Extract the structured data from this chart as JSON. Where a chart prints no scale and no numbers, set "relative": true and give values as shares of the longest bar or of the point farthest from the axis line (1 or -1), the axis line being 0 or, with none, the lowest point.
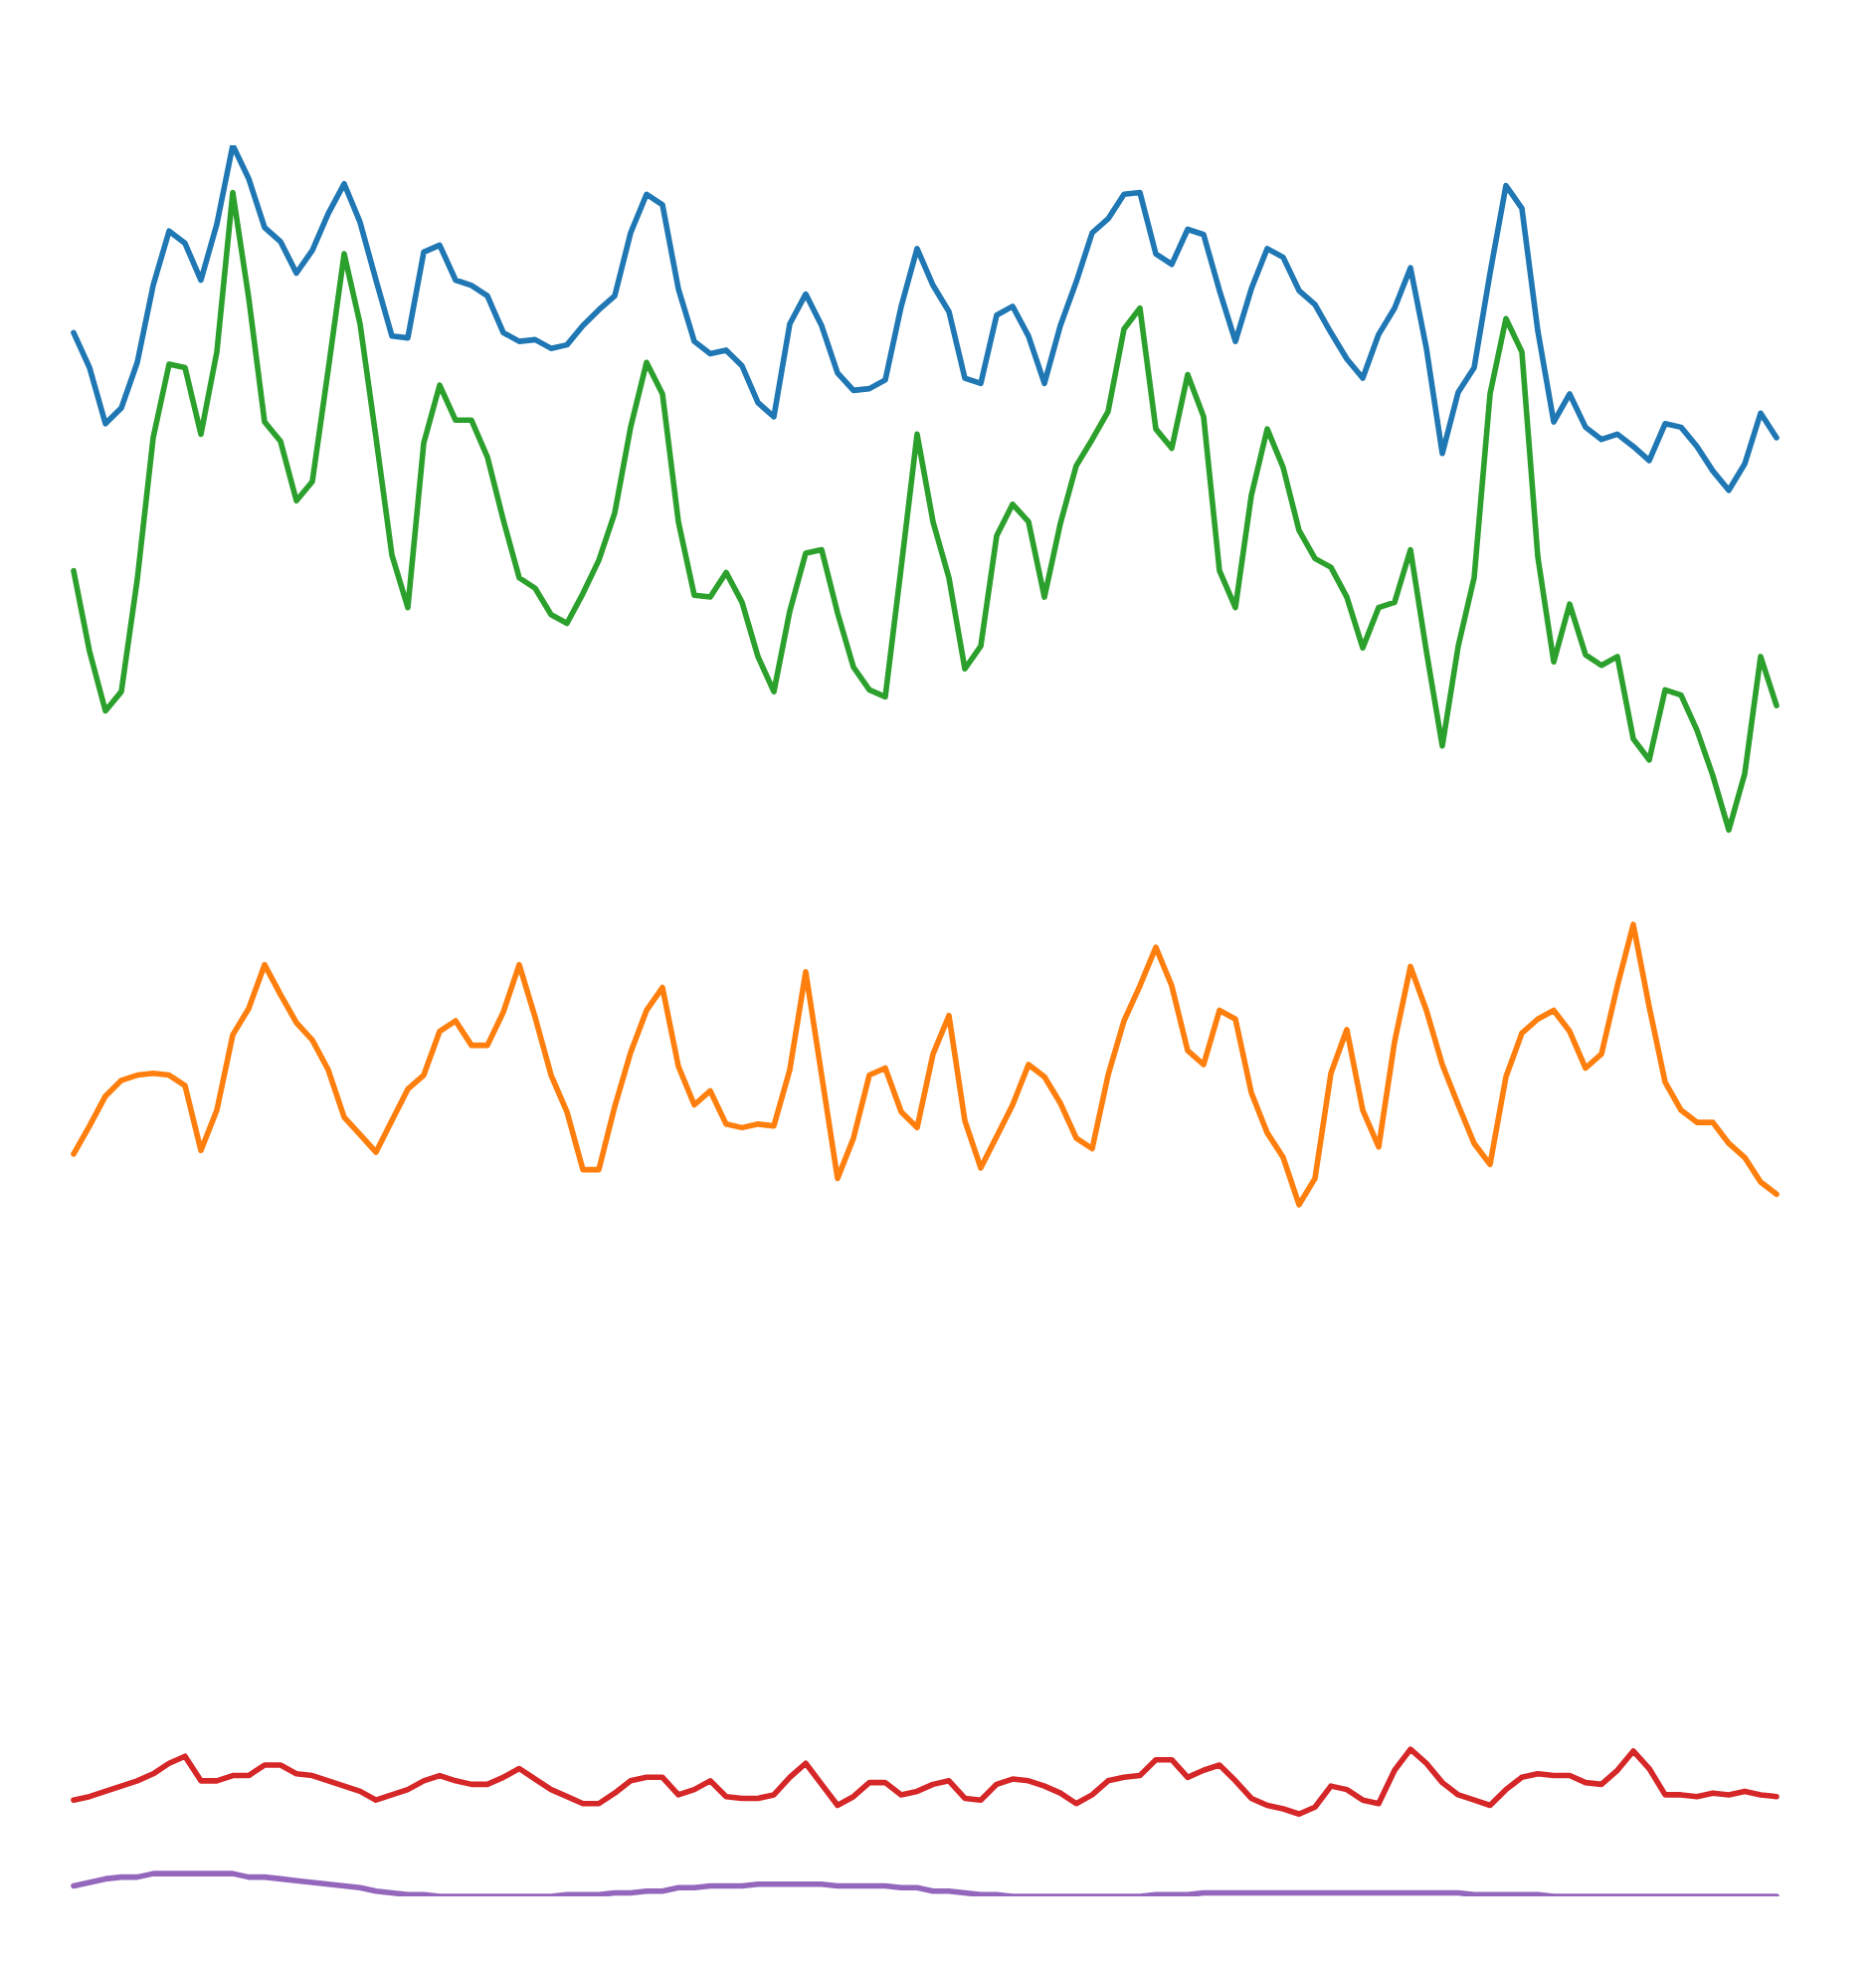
{
  "chart_data": {
    "type": "line",
    "relative": true,
    "categories": [
      null,
      null,
      null,
      null,
      null,
      null,
      null,
      null,
      null,
      null,
      null,
      null,
      null,
      null,
      null,
      null,
      null,
      null,
      null,
      null,
      null,
      null,
      null,
      null,
      null,
      null,
      null,
      null,
      null,
      null,
      null,
      null,
      null,
      null,
      null,
      null,
      null,
      null,
      null,
      null,
      null,
      null,
      null,
      null,
      null,
      null,
      null,
      null,
      null,
      null,
      null,
      null,
      null,
      null,
      null,
      null,
      null,
      null,
      null,
      null,
      null,
      null,
      null,
      null,
      null,
      null,
      null,
      null,
      null,
      null,
      null,
      null,
      null,
      null,
      null,
      null,
      null,
      null,
      null,
      null,
      null,
      null,
      null,
      null,
      null,
      null,
      null,
      null,
      null,
      null,
      null,
      null,
      null,
      null,
      null,
      null,
      null,
      null,
      null,
      null,
      null,
      null,
      null,
      null,
      null,
      null,
      null,
      null
    ],
    "series": [
      {
        "color": "#1f77b4",
        "values": [
          0.893,
          0.873,
          0.841,
          0.85,
          0.876,
          0.92,
          0.951,
          0.944,
          0.923,
          0.955,
          1.0,
          0.981,
          0.953,
          0.945,
          0.927,
          0.94,
          0.961,
          0.978,
          0.956,
          0.923,
          0.891,
          0.89,
          0.939,
          0.943,
          0.923,
          0.92,
          0.914,
          0.893,
          0.888,
          0.889,
          0.884,
          0.886,
          0.897,
          0.906,
          0.914,
          0.95,
          0.972,
          0.966,
          0.918,
          0.888,
          0.881,
          0.883,
          0.874,
          0.853,
          0.845,
          0.898,
          0.915,
          0.897,
          0.87,
          0.86,
          0.861,
          0.866,
          0.908,
          0.941,
          0.92,
          0.905,
          0.867,
          0.864,
          0.903,
          0.908,
          0.891,
          0.864,
          0.897,
          0.922,
          0.95,
          0.958,
          0.972,
          0.973,
          0.938,
          0.932,
          0.952,
          0.949,
          0.917,
          0.888,
          0.918,
          0.941,
          0.936,
          0.917,
          0.909,
          0.893,
          0.878,
          0.867,
          0.892,
          0.907,
          0.93,
          0.884,
          0.824,
          0.859,
          0.873,
          0.927,
          0.977,
          0.964,
          0.894,
          0.842,
          0.858,
          0.839,
          0.832,
          0.835,
          0.828,
          0.82,
          0.841,
          0.839,
          0.828,
          0.814,
          0.803,
          0.818,
          0.847,
          0.833
        ]
      },
      {
        "color": "#ff7f0e",
        "values": [
          0.424,
          0.44,
          0.457,
          0.466,
          0.469,
          0.47,
          0.469,
          0.463,
          0.426,
          0.449,
          0.492,
          0.507,
          0.532,
          0.515,
          0.499,
          0.489,
          0.472,
          0.445,
          0.435,
          0.425,
          0.443,
          0.461,
          0.469,
          0.494,
          0.5,
          0.486,
          0.486,
          0.505,
          0.532,
          0.502,
          0.469,
          0.448,
          0.415,
          0.415,
          0.451,
          0.482,
          0.506,
          0.519,
          0.474,
          0.452,
          0.46,
          0.441,
          0.439,
          0.441,
          0.44,
          0.472,
          0.528,
          0.469,
          0.41,
          0.433,
          0.469,
          0.473,
          0.448,
          0.439,
          0.481,
          0.503,
          0.443,
          0.416,
          0.434,
          0.452,
          0.475,
          0.468,
          0.453,
          0.433,
          0.427,
          0.469,
          0.5,
          0.52,
          0.542,
          0.52,
          0.483,
          0.475,
          0.506,
          0.501,
          0.459,
          0.436,
          0.422,
          0.395,
          0.41,
          0.47,
          0.495,
          0.449,
          0.428,
          0.488,
          0.531,
          0.506,
          0.475,
          0.452,
          0.43,
          0.418,
          0.468,
          0.493,
          0.501,
          0.506,
          0.494,
          0.473,
          0.481,
          0.52,
          0.555,
          0.508,
          0.465,
          0.449,
          0.442,
          0.442,
          0.43,
          0.422,
          0.408,
          0.401
        ]
      },
      {
        "color": "#2ca02c",
        "values": [
          0.757,
          0.711,
          0.677,
          0.688,
          0.752,
          0.833,
          0.875,
          0.873,
          0.835,
          0.882,
          0.973,
          0.913,
          0.842,
          0.831,
          0.797,
          0.808,
          0.872,
          0.938,
          0.898,
          0.833,
          0.766,
          0.736,
          0.83,
          0.863,
          0.843,
          0.843,
          0.822,
          0.786,
          0.753,
          0.747,
          0.732,
          0.727,
          0.744,
          0.763,
          0.79,
          0.839,
          0.876,
          0.858,
          0.785,
          0.743,
          0.742,
          0.756,
          0.739,
          0.708,
          0.688,
          0.734,
          0.767,
          0.769,
          0.733,
          0.702,
          0.689,
          0.685,
          0.759,
          0.835,
          0.785,
          0.753,
          0.701,
          0.714,
          0.777,
          0.795,
          0.785,
          0.742,
          0.784,
          0.817,
          0.832,
          0.848,
          0.895,
          0.907,
          0.838,
          0.827,
          0.869,
          0.845,
          0.757,
          0.736,
          0.8,
          0.838,
          0.816,
          0.78,
          0.764,
          0.759,
          0.742,
          0.713,
          0.736,
          0.739,
          0.769,
          0.711,
          0.657,
          0.714,
          0.753,
          0.858,
          0.901,
          0.882,
          0.765,
          0.705,
          0.738,
          0.709,
          0.703,
          0.708,
          0.661,
          0.649,
          0.689,
          0.686,
          0.666,
          0.64,
          0.609,
          0.641,
          0.708,
          0.68
        ]
      },
      {
        "color": "#d62728",
        "values": [
          0.055,
          0.057,
          0.06,
          0.063,
          0.066,
          0.07,
          0.076,
          0.08,
          0.066,
          0.066,
          0.069,
          0.069,
          0.075,
          0.075,
          0.07,
          0.069,
          0.066,
          0.063,
          0.06,
          0.055,
          0.058,
          0.061,
          0.066,
          0.069,
          0.066,
          0.064,
          0.064,
          0.068,
          0.073,
          0.067,
          0.061,
          0.057,
          0.053,
          0.053,
          0.059,
          0.066,
          0.068,
          0.068,
          0.058,
          0.061,
          0.066,
          0.057,
          0.056,
          0.056,
          0.058,
          0.068,
          0.076,
          0.064,
          0.052,
          0.057,
          0.065,
          0.065,
          0.058,
          0.06,
          0.064,
          0.066,
          0.056,
          0.055,
          0.064,
          0.067,
          0.066,
          0.063,
          0.059,
          0.053,
          0.058,
          0.066,
          0.068,
          0.069,
          0.078,
          0.078,
          0.068,
          0.072,
          0.075,
          0.066,
          0.056,
          0.052,
          0.05,
          0.047,
          0.051,
          0.063,
          0.061,
          0.055,
          0.053,
          0.072,
          0.084,
          0.076,
          0.065,
          0.058,
          0.055,
          0.052,
          0.061,
          0.068,
          0.07,
          0.069,
          0.069,
          0.065,
          0.064,
          0.072,
          0.083,
          0.073,
          0.058,
          0.058,
          0.057,
          0.059,
          0.058,
          0.06,
          0.058,
          0.057
        ]
      },
      {
        "color": "#9467bd",
        "values": [
          0.006,
          0.008,
          0.01,
          0.011,
          0.011,
          0.013,
          0.013,
          0.013,
          0.013,
          0.013,
          0.013,
          0.011,
          0.011,
          0.01,
          0.009,
          0.008,
          0.007,
          0.006,
          0.005,
          0.003,
          0.002,
          0.001,
          0.001,
          0,
          0,
          0,
          0,
          0,
          0,
          0,
          0,
          0.001,
          0.001,
          0.001,
          0.002,
          0.002,
          0.003,
          0.003,
          0.005,
          0.005,
          0.006,
          0.006,
          0.006,
          0.007,
          0.007,
          0.007,
          0.007,
          0.007,
          0.006,
          0.006,
          0.006,
          0.006,
          0.005,
          0.005,
          0.003,
          0.003,
          0.002,
          0.001,
          0.001,
          0,
          0,
          0,
          0,
          0,
          0,
          0,
          0,
          0,
          0.001,
          0.001,
          0.001,
          0.002,
          0.002,
          0.002,
          0.002,
          0.002,
          0.002,
          0.002,
          0.002,
          0.002,
          0.002,
          0.002,
          0.002,
          0.002,
          0.002,
          0.002,
          0.002,
          0.002,
          0.001,
          0.001,
          0.001,
          0.001,
          0.001,
          0,
          0,
          0,
          0,
          0,
          0,
          0,
          0,
          0,
          0,
          0,
          0,
          0,
          0,
          0
        ]
      }
    ]
  }
}
